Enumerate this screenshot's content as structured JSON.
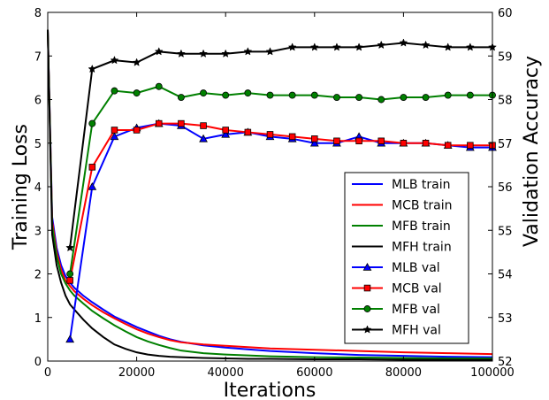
{
  "chart_data": {
    "type": "line",
    "title": "",
    "xlabel": "Iterations",
    "ylabel_left": "Training Loss",
    "ylabel_right": "Validation Accuracy",
    "xlim": [
      0,
      100000
    ],
    "ylim_left": [
      0,
      8
    ],
    "ylim_right": [
      52,
      60
    ],
    "xticks": [
      "0",
      "20000",
      "40000",
      "60000",
      "80000",
      "100000"
    ],
    "yticks_left": [
      "0",
      "1",
      "2",
      "3",
      "4",
      "5",
      "6",
      "7",
      "8"
    ],
    "yticks_right": [
      "52",
      "53",
      "54",
      "55",
      "56",
      "57",
      "58",
      "59",
      "60"
    ],
    "grid": false,
    "legend_position": "center-right",
    "train_x": [
      0,
      1000,
      2000,
      3000,
      4000,
      5000,
      6000,
      8000,
      10000,
      12500,
      15000,
      17500,
      20000,
      22500,
      25000,
      27500,
      30000,
      35000,
      40000,
      45000,
      50000,
      60000,
      70000,
      80000,
      90000,
      100000
    ],
    "series": [
      {
        "name": "MLB train",
        "axis": "left",
        "color": "#0000ff",
        "values": [
          7.6,
          3.3,
          2.6,
          2.2,
          1.95,
          1.8,
          1.68,
          1.5,
          1.35,
          1.18,
          1.02,
          0.9,
          0.78,
          0.68,
          0.58,
          0.5,
          0.44,
          0.36,
          0.31,
          0.27,
          0.23,
          0.18,
          0.14,
          0.12,
          0.1,
          0.09
        ]
      },
      {
        "name": "MCB train",
        "axis": "left",
        "color": "#ff0000",
        "values": [
          7.6,
          3.2,
          2.5,
          2.1,
          1.85,
          1.72,
          1.6,
          1.43,
          1.28,
          1.12,
          0.98,
          0.85,
          0.73,
          0.63,
          0.55,
          0.48,
          0.43,
          0.38,
          0.35,
          0.32,
          0.29,
          0.26,
          0.23,
          0.2,
          0.18,
          0.16
        ]
      },
      {
        "name": "MFB train",
        "axis": "left",
        "color": "#008000",
        "values": [
          7.6,
          3.1,
          2.4,
          2.0,
          1.78,
          1.62,
          1.5,
          1.32,
          1.15,
          0.98,
          0.82,
          0.68,
          0.55,
          0.45,
          0.37,
          0.3,
          0.24,
          0.18,
          0.15,
          0.13,
          0.11,
          0.09,
          0.08,
          0.07,
          0.06,
          0.06
        ]
      },
      {
        "name": "MFH train",
        "axis": "left",
        "color": "#000000",
        "values": [
          7.6,
          2.9,
          2.2,
          1.8,
          1.5,
          1.3,
          1.18,
          0.95,
          0.75,
          0.55,
          0.38,
          0.28,
          0.2,
          0.15,
          0.12,
          0.1,
          0.09,
          0.07,
          0.06,
          0.05,
          0.05,
          0.04,
          0.04,
          0.03,
          0.03,
          0.03
        ]
      },
      {
        "name": "MLB val",
        "axis": "right",
        "color": "#0000ff",
        "marker": "triangle",
        "x": [
          5000,
          10000,
          15000,
          20000,
          25000,
          30000,
          35000,
          40000,
          45000,
          50000,
          55000,
          60000,
          65000,
          70000,
          75000,
          80000,
          85000,
          90000,
          95000,
          100000
        ],
        "values": [
          52.5,
          56.0,
          57.15,
          57.35,
          57.45,
          57.4,
          57.1,
          57.2,
          57.25,
          57.15,
          57.1,
          57.0,
          57.0,
          57.15,
          57.0,
          57.0,
          57.0,
          56.95,
          56.9,
          56.9
        ]
      },
      {
        "name": "MCB val",
        "axis": "right",
        "color": "#ff0000",
        "marker": "square",
        "x": [
          5000,
          10000,
          15000,
          20000,
          25000,
          30000,
          35000,
          40000,
          45000,
          50000,
          55000,
          60000,
          65000,
          70000,
          75000,
          80000,
          85000,
          90000,
          95000,
          100000
        ],
        "values": [
          53.85,
          56.45,
          57.3,
          57.3,
          57.45,
          57.45,
          57.4,
          57.3,
          57.25,
          57.2,
          57.15,
          57.1,
          57.05,
          57.05,
          57.05,
          57.0,
          57.0,
          56.95,
          56.95,
          56.95
        ]
      },
      {
        "name": "MFB val",
        "axis": "right",
        "color": "#008000",
        "marker": "circle",
        "x": [
          5000,
          10000,
          15000,
          20000,
          25000,
          30000,
          35000,
          40000,
          45000,
          50000,
          55000,
          60000,
          65000,
          70000,
          75000,
          80000,
          85000,
          90000,
          95000,
          100000
        ],
        "values": [
          54.0,
          57.45,
          58.2,
          58.15,
          58.3,
          58.05,
          58.15,
          58.1,
          58.15,
          58.1,
          58.1,
          58.1,
          58.05,
          58.05,
          58.0,
          58.05,
          58.05,
          58.1,
          58.1,
          58.1
        ]
      },
      {
        "name": "MFH val",
        "axis": "right",
        "color": "#000000",
        "marker": "star",
        "x": [
          5000,
          10000,
          15000,
          20000,
          25000,
          30000,
          35000,
          40000,
          45000,
          50000,
          55000,
          60000,
          65000,
          70000,
          75000,
          80000,
          85000,
          90000,
          95000,
          100000
        ],
        "values": [
          54.6,
          58.7,
          58.9,
          58.85,
          59.1,
          59.05,
          59.05,
          59.05,
          59.1,
          59.1,
          59.2,
          59.2,
          59.2,
          59.2,
          59.25,
          59.3,
          59.25,
          59.2,
          59.2,
          59.2
        ]
      }
    ]
  }
}
